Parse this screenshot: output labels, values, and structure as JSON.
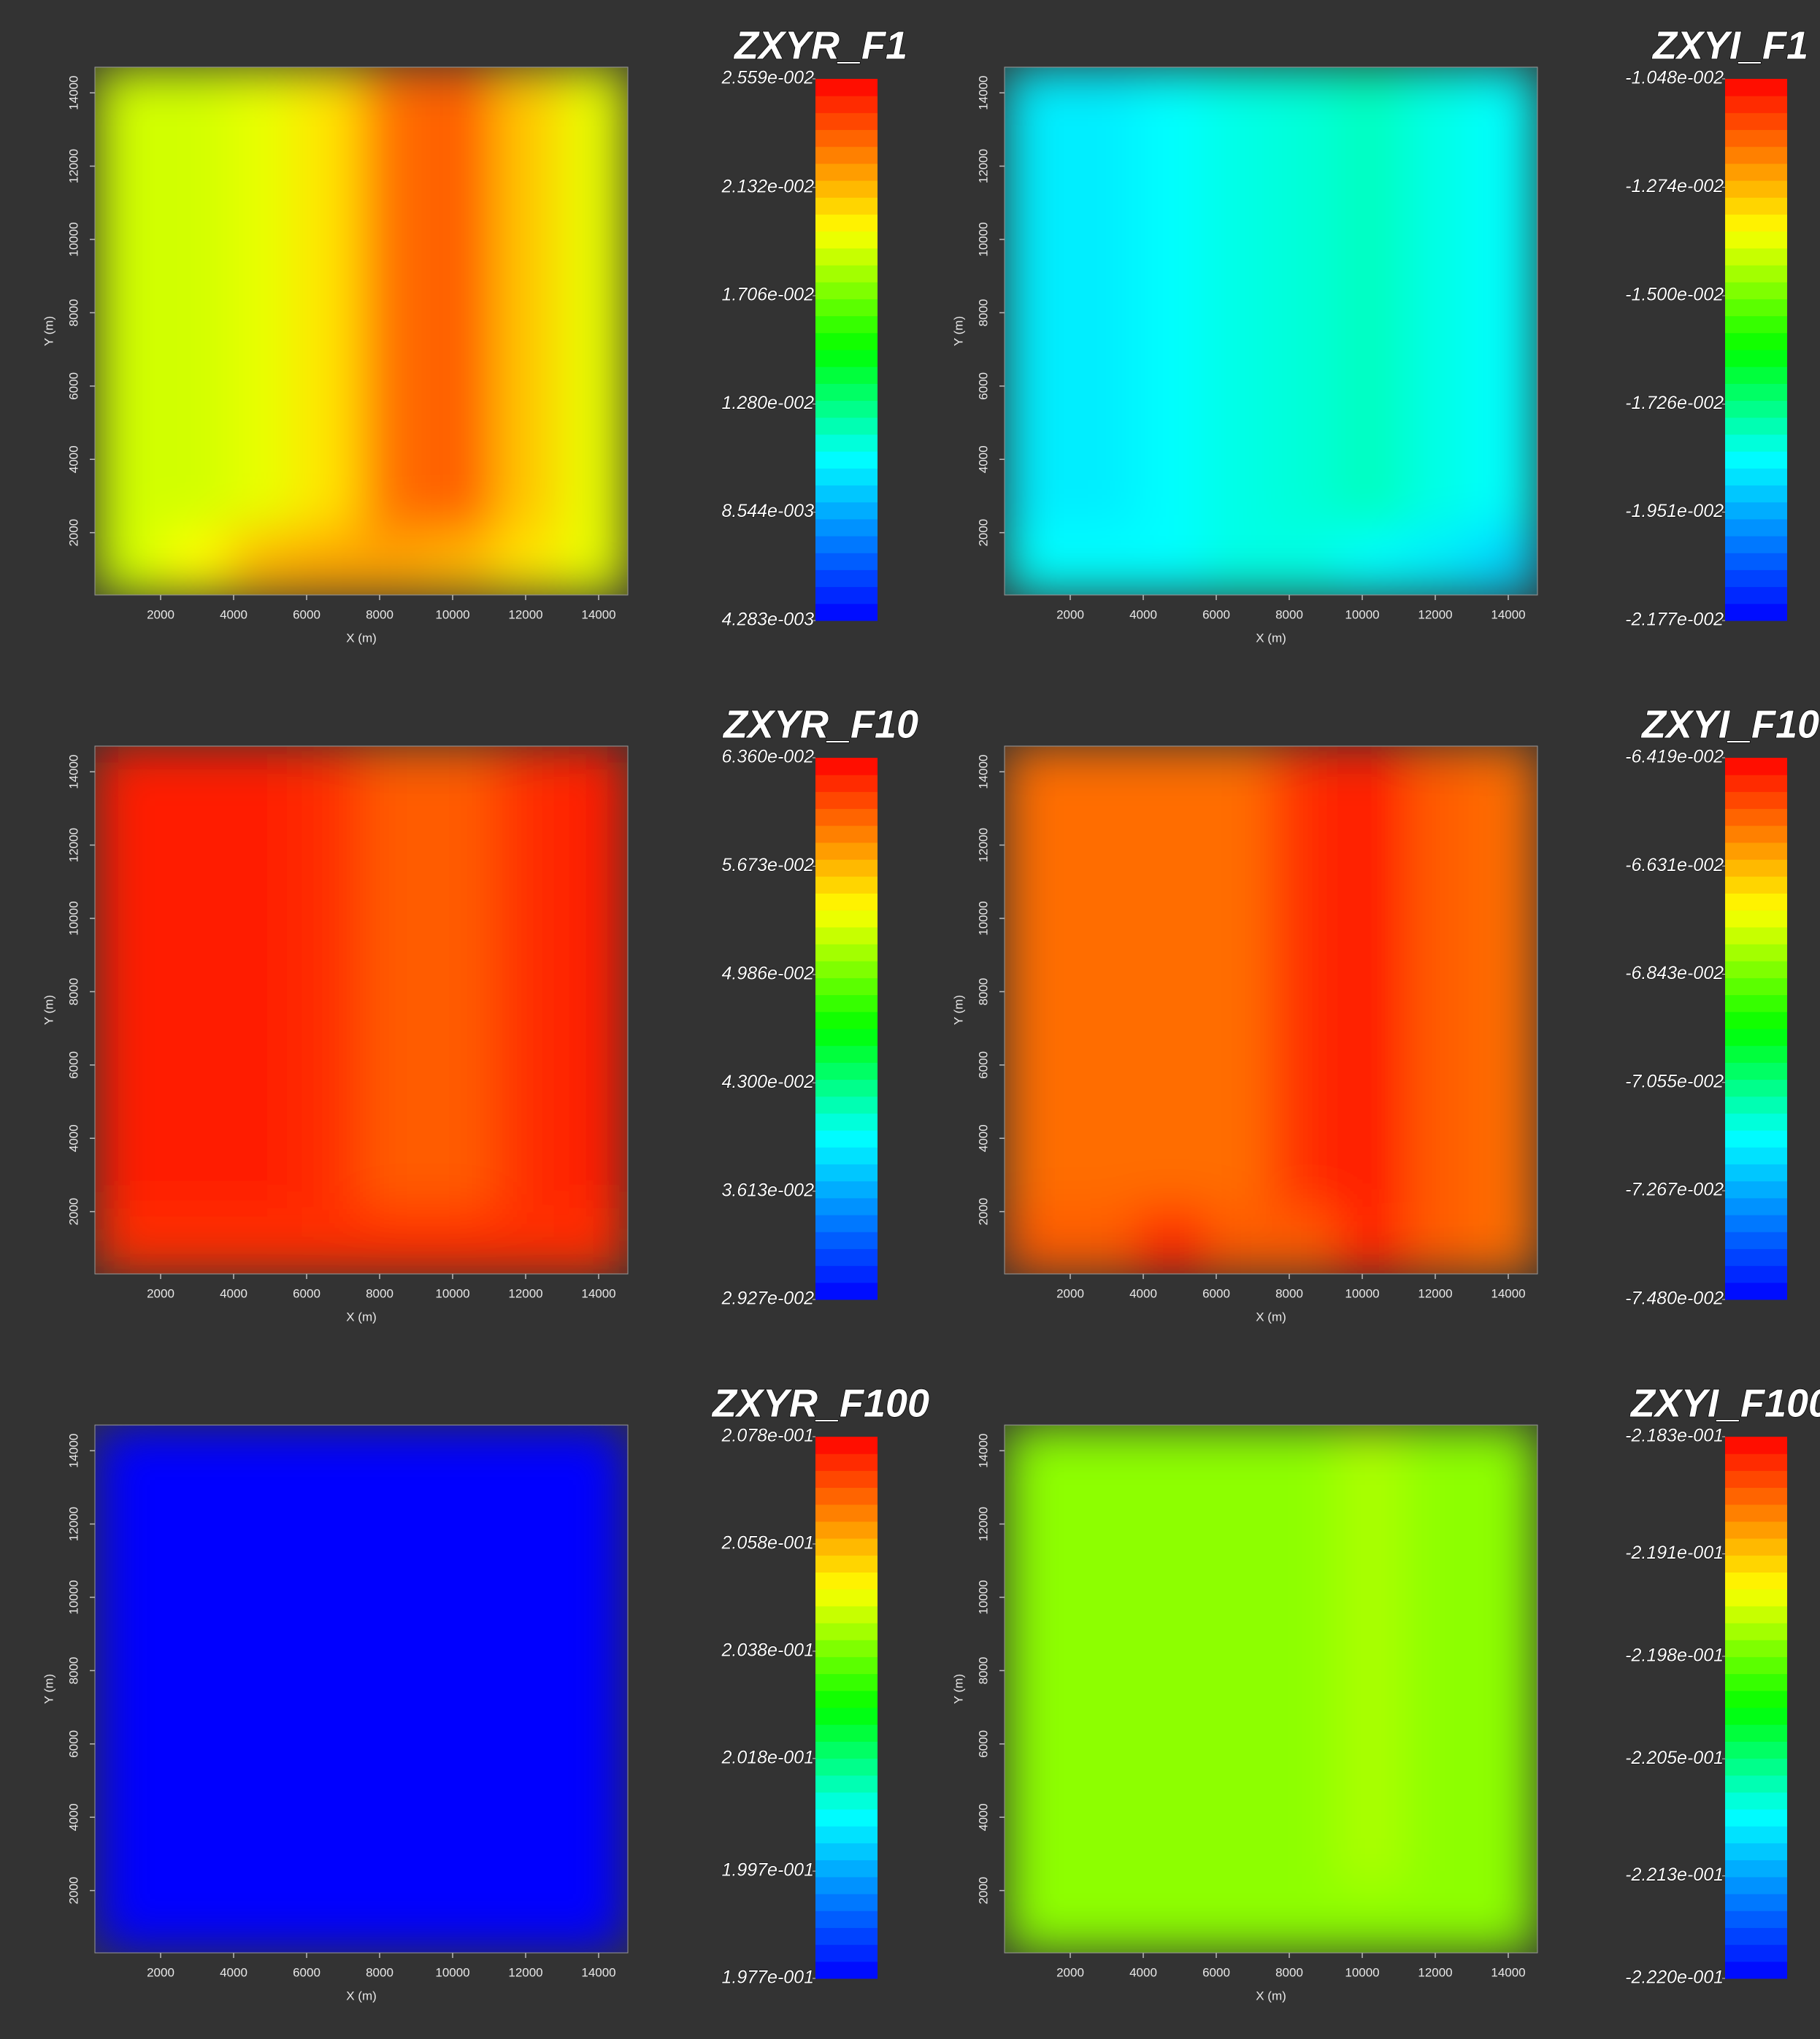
{
  "chart_data": [
    {
      "type": "heatmap",
      "title": "ZXYR_F1",
      "xlabel": "X (m)",
      "ylabel": "Y (m)",
      "xlim": [
        200,
        14800
      ],
      "ylim": [
        300,
        14700
      ],
      "xticks": [
        2000,
        4000,
        6000,
        8000,
        10000,
        12000,
        14000
      ],
      "yticks": [
        2000,
        4000,
        6000,
        8000,
        10000,
        12000,
        14000
      ],
      "x": [
        1112,
        2937,
        4762,
        6587,
        8412,
        10237,
        12062,
        13887
      ],
      "y": [
        13800,
        12000,
        10200,
        8400,
        6600,
        4800,
        3000,
        1200
      ],
      "z": [
        [
          0.01877,
          0.01962,
          0.02133,
          0.02176,
          0.02176,
          0.02133,
          0.02026,
          0.0192
        ],
        [
          0.01749,
          0.016,
          0.01494,
          0.01494,
          0.01494,
          0.01494,
          0.016,
          0.01707
        ],
        [
          0.016,
          0.01281,
          0.01067,
          0.01067,
          0.00748,
          0.00535,
          0.01067,
          0.016
        ],
        [
          0.016,
          0.01494,
          0.01387,
          0.01174,
          0.00535,
          0.00428,
          0.01067,
          0.016
        ],
        [
          0.01707,
          0.016,
          0.01494,
          0.01281,
          0.00535,
          0.00428,
          0.01067,
          0.016
        ],
        [
          0.01749,
          0.01664,
          0.01536,
          0.01387,
          0.00748,
          0.00641,
          0.01174,
          0.01664
        ],
        [
          0.01813,
          0.01749,
          0.01707,
          0.01664,
          0.016,
          0.016,
          0.01707,
          0.01813
        ],
        [
          0.01877,
          0.01877,
          0.0192,
          0.02026,
          0.02303,
          0.02346,
          0.0209,
          0.0192
        ]
      ],
      "zlim": [
        0.004283,
        0.02559
      ],
      "cticks": [
        {
          "value": 0.02559,
          "label": "2.559e-002"
        },
        {
          "value": 0.02132,
          "label": "2.132e-002"
        },
        {
          "value": 0.01706,
          "label": "1.706e-002"
        },
        {
          "value": 0.0128,
          "label": "1.280e-002"
        },
        {
          "value": 0.008544,
          "label": "8.544e-003"
        },
        {
          "value": 0.004283,
          "label": "4.283e-003"
        }
      ],
      "colorscale": [
        [
          0,
          "#0000ff"
        ],
        [
          0.3,
          "#00ffff"
        ],
        [
          0.5,
          "#00ff00"
        ],
        [
          0.72,
          "#ffff00"
        ],
        [
          1,
          "#ff0000"
        ]
      ]
    },
    {
      "type": "heatmap",
      "title": "ZXYI_F1",
      "xlabel": "X (m)",
      "ylabel": "Y (m)",
      "xlim": [
        200,
        14800
      ],
      "ylim": [
        300,
        14700
      ],
      "xticks": [
        2000,
        4000,
        6000,
        8000,
        10000,
        12000,
        14000
      ],
      "yticks": [
        2000,
        4000,
        6000,
        8000,
        10000,
        12000,
        14000
      ],
      "x": [
        1112,
        2937,
        4762,
        6587,
        8412,
        10237,
        12062,
        13887
      ],
      "y": [
        13800,
        12000,
        10200,
        8400,
        6600,
        4800,
        3000,
        1200
      ],
      "z": [
        [
          -0.01838,
          -0.01838,
          -0.01838,
          -0.01816,
          -0.01816,
          -0.01838,
          -0.01861,
          -0.01895
        ],
        [
          -0.01838,
          -0.01725,
          -0.01556,
          -0.015,
          -0.01477,
          -0.015,
          -0.01669,
          -0.01861
        ],
        [
          -0.01895,
          -0.01782,
          -0.01556,
          -0.0133,
          -0.01161,
          -0.01104,
          -0.01556,
          -0.01861
        ],
        [
          -0.02008,
          -0.02087,
          -0.02008,
          -0.01782,
          -0.015,
          -0.01048,
          -0.01556,
          -0.01861
        ],
        [
          -0.02008,
          -0.02008,
          -0.01951,
          -0.01838,
          -0.01556,
          -0.01048,
          -0.01556,
          -0.01861
        ],
        [
          -0.01951,
          -0.01951,
          -0.01895,
          -0.01838,
          -0.01613,
          -0.01104,
          -0.01556,
          -0.01838
        ],
        [
          -0.01895,
          -0.01895,
          -0.01861,
          -0.01838,
          -0.01669,
          -0.015,
          -0.01669,
          -0.01838
        ],
        [
          -0.01861,
          -0.01861,
          -0.01838,
          -0.01816,
          -0.01804,
          -0.01782,
          -0.01816,
          -0.01838
        ]
      ],
      "zlim": [
        -0.02177,
        -0.01048
      ],
      "cticks": [
        {
          "value": -0.01048,
          "label": "-1.048e-002"
        },
        {
          "value": -0.01274,
          "label": "-1.274e-002"
        },
        {
          "value": -0.015,
          "label": "-1.500e-002"
        },
        {
          "value": -0.01726,
          "label": "-1.726e-002"
        },
        {
          "value": -0.01951,
          "label": "-1.951e-002"
        },
        {
          "value": -0.02177,
          "label": "-2.177e-002"
        }
      ],
      "colorscale": [
        [
          0,
          "#0000ff"
        ],
        [
          0.3,
          "#00ffff"
        ],
        [
          0.5,
          "#00ff00"
        ],
        [
          0.72,
          "#ffff00"
        ],
        [
          1,
          "#ff0000"
        ]
      ]
    },
    {
      "type": "heatmap",
      "title": "ZXYR_F10",
      "xlabel": "X (m)",
      "ylabel": "Y (m)",
      "xlim": [
        200,
        14800
      ],
      "ylim": [
        300,
        14700
      ],
      "xticks": [
        2000,
        4000,
        6000,
        8000,
        10000,
        12000,
        14000
      ],
      "yticks": [
        2000,
        4000,
        6000,
        8000,
        10000,
        12000,
        14000
      ],
      "x": [
        1112,
        2937,
        4762,
        6587,
        8412,
        10237,
        12062,
        13887
      ],
      "y": [
        13800,
        12000,
        10200,
        8400,
        6600,
        4800,
        3000,
        1200
      ],
      "z": [
        [
          0.06188,
          0.06188,
          0.06188,
          0.06188,
          0.06188,
          0.06188,
          0.06188,
          0.06188
        ],
        [
          0.06188,
          0.05673,
          0.04987,
          0.04987,
          0.04987,
          0.04987,
          0.0533,
          0.06188
        ],
        [
          0.06017,
          0.04987,
          0.03957,
          0.03785,
          0.03442,
          0.03099,
          0.04472,
          0.06017
        ],
        [
          0.06188,
          0.06017,
          0.05673,
          0.04815,
          0.03442,
          0.02927,
          0.04472,
          0.06017
        ],
        [
          0.06257,
          0.06188,
          0.06017,
          0.05158,
          0.03614,
          0.02927,
          0.04472,
          0.06017
        ],
        [
          0.06257,
          0.06188,
          0.06017,
          0.0533,
          0.03957,
          0.0327,
          0.04644,
          0.06017
        ],
        [
          0.06257,
          0.06257,
          0.06188,
          0.05845,
          0.04987,
          0.04815,
          0.05502,
          0.06188
        ],
        [
          0.06257,
          0.06257,
          0.06257,
          0.06188,
          0.06017,
          0.06017,
          0.06188,
          0.06257
        ]
      ],
      "zlim": [
        0.02927,
        0.0636
      ],
      "cticks": [
        {
          "value": 0.0636,
          "label": "6.360e-002"
        },
        {
          "value": 0.05673,
          "label": "5.673e-002"
        },
        {
          "value": 0.04986,
          "label": "4.986e-002"
        },
        {
          "value": 0.043,
          "label": "4.300e-002"
        },
        {
          "value": 0.03613,
          "label": "3.613e-002"
        },
        {
          "value": 0.02927,
          "label": "2.927e-002"
        }
      ],
      "colorscale": [
        [
          0,
          "#0000ff"
        ],
        [
          0.3,
          "#00ffff"
        ],
        [
          0.5,
          "#00ff00"
        ],
        [
          0.72,
          "#ffff00"
        ],
        [
          1,
          "#ff0000"
        ]
      ]
    },
    {
      "type": "heatmap",
      "title": "ZXYI_F10",
      "xlabel": "X (m)",
      "ylabel": "Y (m)",
      "xlim": [
        200,
        14800
      ],
      "ylim": [
        300,
        14700
      ],
      "xticks": [
        2000,
        4000,
        6000,
        8000,
        10000,
        12000,
        14000
      ],
      "yticks": [
        2000,
        4000,
        6000,
        8000,
        10000,
        12000,
        14000
      ],
      "x": [
        1112,
        2937,
        4762,
        6587,
        8412,
        10237,
        12062,
        13887
      ],
      "y": [
        13800,
        12000,
        10200,
        8400,
        6600,
        4800,
        3000,
        1200
      ],
      "z": [
        [
          -0.06525,
          -0.06525,
          -0.06451,
          -0.06525,
          -0.06525,
          -0.06451,
          -0.06525,
          -0.06546
        ],
        [
          -0.06546,
          -0.06737,
          -0.06684,
          -0.06896,
          -0.06896,
          -0.06896,
          -0.06737,
          -0.06546
        ],
        [
          -0.06631,
          -0.06896,
          -0.06843,
          -0.07003,
          -0.07003,
          -0.07003,
          -0.07003,
          -0.06631
        ],
        [
          -0.06525,
          -0.06546,
          -0.06631,
          -0.07003,
          -0.07395,
          -0.07162,
          -0.07395,
          -0.06737
        ],
        [
          -0.06525,
          -0.06525,
          -0.06578,
          -0.07003,
          -0.07427,
          -0.07162,
          -0.07427,
          -0.06737
        ],
        [
          -0.06525,
          -0.06525,
          -0.06546,
          -0.0695,
          -0.07215,
          -0.07109,
          -0.07215,
          -0.06737
        ],
        [
          -0.06546,
          -0.06546,
          -0.06546,
          -0.06684,
          -0.0695,
          -0.06896,
          -0.06896,
          -0.06631
        ],
        [
          -0.06546,
          -0.06546,
          -0.06546,
          -0.06546,
          -0.06472,
          -0.0644,
          -0.06525,
          -0.06546
        ]
      ],
      "zlim": [
        -0.0748,
        -0.06419
      ],
      "cticks": [
        {
          "value": -0.06419,
          "label": "-6.419e-002"
        },
        {
          "value": -0.06631,
          "label": "-6.631e-002"
        },
        {
          "value": -0.06843,
          "label": "-6.843e-002"
        },
        {
          "value": -0.07055,
          "label": "-7.055e-002"
        },
        {
          "value": -0.07267,
          "label": "-7.267e-002"
        },
        {
          "value": -0.0748,
          "label": "-7.480e-002"
        }
      ],
      "colorscale": [
        [
          0,
          "#0000ff"
        ],
        [
          0.3,
          "#00ffff"
        ],
        [
          0.5,
          "#00ff00"
        ],
        [
          0.72,
          "#ffff00"
        ],
        [
          1,
          "#ff0000"
        ]
      ]
    },
    {
      "type": "heatmap",
      "title": "ZXYR_F100",
      "xlabel": "X (m)",
      "ylabel": "Y (m)",
      "xlim": [
        200,
        14800
      ],
      "ylim": [
        300,
        14700
      ],
      "xticks": [
        2000,
        4000,
        6000,
        8000,
        10000,
        12000,
        14000
      ],
      "yticks": [
        2000,
        4000,
        6000,
        8000,
        10000,
        12000,
        14000
      ],
      "x": [
        1112,
        2937,
        4762,
        6587,
        8412,
        10237,
        12062,
        13887
      ],
      "y": [
        13800,
        12000,
        10200,
        8400,
        6600,
        4800,
        3000,
        1200
      ],
      "z": [
        [
          0.1977,
          0.1977,
          0.1977,
          0.1977,
          0.1977,
          0.1977,
          0.1977,
          0.1977
        ],
        [
          0.1977,
          0.1987,
          0.2017,
          0.2022,
          0.2022,
          0.2022,
          0.2007,
          0.1977
        ],
        [
          0.1977,
          0.2022,
          0.2073,
          0.2078,
          0.2078,
          0.2078,
          0.2017,
          0.1977
        ],
        [
          0.1977,
          0.1987,
          0.2007,
          0.2012,
          0.2038,
          0.2078,
          0.2017,
          0.1977
        ],
        [
          0.1977,
          0.1977,
          0.1977,
          0.1987,
          0.2033,
          0.2078,
          0.2017,
          0.1977
        ],
        [
          0.1977,
          0.1977,
          0.1977,
          0.1987,
          0.2028,
          0.2073,
          0.2017,
          0.1977
        ],
        [
          0.1977,
          0.1977,
          0.1977,
          0.1982,
          0.2017,
          0.2028,
          0.2007,
          0.1977
        ],
        [
          0.1977,
          0.1977,
          0.1977,
          0.1977,
          0.1977,
          0.1977,
          0.1977,
          0.1977
        ]
      ],
      "zlim": [
        0.1977,
        0.2078
      ],
      "cticks": [
        {
          "value": 0.2078,
          "label": "2.078e-001"
        },
        {
          "value": 0.2058,
          "label": "2.058e-001"
        },
        {
          "value": 0.2038,
          "label": "2.038e-001"
        },
        {
          "value": 0.2018,
          "label": "2.018e-001"
        },
        {
          "value": 0.1997,
          "label": "1.997e-001"
        },
        {
          "value": 0.1977,
          "label": "1.977e-001"
        }
      ],
      "colorscale": [
        [
          0,
          "#0000ff"
        ],
        [
          0.3,
          "#00ffff"
        ],
        [
          0.5,
          "#00ff00"
        ],
        [
          0.72,
          "#ffff00"
        ],
        [
          1,
          "#ff0000"
        ]
      ]
    },
    {
      "type": "heatmap",
      "title": "ZXYI_F100",
      "xlabel": "X (m)",
      "ylabel": "Y (m)",
      "xlim": [
        200,
        14800
      ],
      "ylim": [
        300,
        14700
      ],
      "xticks": [
        2000,
        4000,
        6000,
        8000,
        10000,
        12000,
        14000
      ],
      "yticks": [
        2000,
        4000,
        6000,
        8000,
        10000,
        12000,
        14000
      ],
      "x": [
        1112,
        2937,
        4762,
        6587,
        8412,
        10237,
        12062,
        13887
      ],
      "y": [
        13800,
        12000,
        10200,
        8400,
        6600,
        4800,
        3000,
        1200
      ],
      "z": [
        [
          -0.2197,
          -0.2197,
          -0.2197,
          -0.2197,
          -0.2197,
          -0.2197,
          -0.2197,
          -0.2197
        ],
        [
          -0.2197,
          -0.2192,
          -0.219,
          -0.219,
          -0.219,
          -0.219,
          -0.219,
          -0.2196
        ],
        [
          -0.2197,
          -0.2189,
          -0.2216,
          -0.2218,
          -0.2218,
          -0.2218,
          -0.2194,
          -0.219
        ],
        [
          -0.2197,
          -0.2194,
          -0.2192,
          -0.219,
          -0.2185,
          -0.2213,
          -0.2205,
          -0.2187
        ],
        [
          -0.2197,
          -0.2197,
          -0.2197,
          -0.2194,
          -0.2185,
          -0.2213,
          -0.2205,
          -0.2187
        ],
        [
          -0.2197,
          -0.2197,
          -0.2197,
          -0.2194,
          -0.2187,
          -0.2214,
          -0.2207,
          -0.2189
        ],
        [
          -0.2197,
          -0.2197,
          -0.2197,
          -0.2196,
          -0.219,
          -0.2202,
          -0.2196,
          -0.2194
        ],
        [
          -0.2197,
          -0.2197,
          -0.2197,
          -0.2197,
          -0.2197,
          -0.2196,
          -0.2197,
          -0.2197
        ]
      ],
      "zlim": [
        -0.222,
        -0.2183
      ],
      "cticks": [
        {
          "value": -0.2183,
          "label": "-2.183e-001"
        },
        {
          "value": -0.2191,
          "label": "-2.191e-001"
        },
        {
          "value": -0.2198,
          "label": "-2.198e-001"
        },
        {
          "value": -0.2205,
          "label": "-2.205e-001"
        },
        {
          "value": -0.2213,
          "label": "-2.213e-001"
        },
        {
          "value": -0.222,
          "label": "-2.220e-001"
        }
      ],
      "colorscale": [
        [
          0,
          "#0000ff"
        ],
        [
          0.3,
          "#00ffff"
        ],
        [
          0.5,
          "#00ff00"
        ],
        [
          0.72,
          "#ffff00"
        ],
        [
          1,
          "#ff0000"
        ]
      ]
    }
  ]
}
